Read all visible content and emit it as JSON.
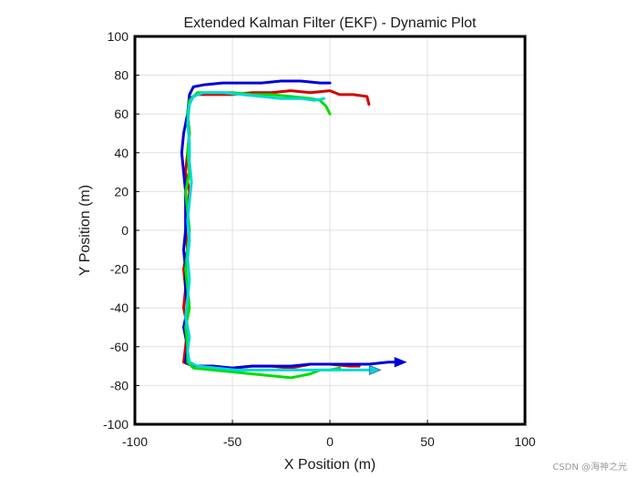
{
  "chart_data": {
    "type": "line",
    "title": "Extended Kalman Filter (EKF) - Dynamic Plot",
    "xlabel": "X Position (m)",
    "ylabel": "Y Position (m)",
    "xlim": [
      -100,
      100
    ],
    "ylim": [
      -100,
      100
    ],
    "xticks": [
      -100,
      -50,
      0,
      50,
      100
    ],
    "yticks": [
      -100,
      -80,
      -60,
      -40,
      -20,
      0,
      20,
      40,
      60,
      80,
      100
    ],
    "grid": true,
    "legend": "none",
    "series": [
      {
        "color": "#d40000",
        "end_marker": "none",
        "points": [
          [
            20,
            65
          ],
          [
            19,
            69
          ],
          [
            12,
            70
          ],
          [
            5,
            70
          ],
          [
            0,
            72
          ],
          [
            -10,
            71
          ],
          [
            -20,
            72
          ],
          [
            -30,
            71
          ],
          [
            -40,
            71
          ],
          [
            -50,
            70
          ],
          [
            -60,
            70
          ],
          [
            -68,
            70
          ],
          [
            -72,
            68
          ],
          [
            -73,
            60
          ],
          [
            -72,
            50
          ],
          [
            -73,
            40
          ],
          [
            -74,
            30
          ],
          [
            -72,
            20
          ],
          [
            -73,
            10
          ],
          [
            -74,
            0
          ],
          [
            -73,
            -10
          ],
          [
            -75,
            -20
          ],
          [
            -74,
            -30
          ],
          [
            -75,
            -40
          ],
          [
            -73,
            -50
          ],
          [
            -74,
            -60
          ],
          [
            -75,
            -68
          ],
          [
            -70,
            -70
          ],
          [
            -60,
            -70
          ],
          [
            -50,
            -71
          ],
          [
            -40,
            -70
          ],
          [
            -30,
            -70
          ],
          [
            -20,
            -71
          ],
          [
            -10,
            -69
          ],
          [
            0,
            -69
          ],
          [
            10,
            -70
          ],
          [
            15,
            -70
          ]
        ]
      },
      {
        "color": "#0000d8",
        "end_marker": "arrow",
        "points": [
          [
            0,
            76
          ],
          [
            -5,
            76
          ],
          [
            -15,
            77
          ],
          [
            -25,
            77
          ],
          [
            -35,
            76
          ],
          [
            -45,
            76
          ],
          [
            -55,
            76
          ],
          [
            -65,
            75
          ],
          [
            -70,
            74
          ],
          [
            -72,
            70
          ],
          [
            -73,
            60
          ],
          [
            -75,
            50
          ],
          [
            -76,
            40
          ],
          [
            -75,
            30
          ],
          [
            -74,
            20
          ],
          [
            -74,
            10
          ],
          [
            -74,
            0
          ],
          [
            -75,
            -10
          ],
          [
            -74,
            -20
          ],
          [
            -74,
            -30
          ],
          [
            -73,
            -40
          ],
          [
            -75,
            -50
          ],
          [
            -73,
            -60
          ],
          [
            -74,
            -68
          ],
          [
            -70,
            -70
          ],
          [
            -60,
            -70
          ],
          [
            -50,
            -71
          ],
          [
            -40,
            -70
          ],
          [
            -30,
            -70
          ],
          [
            -20,
            -70
          ],
          [
            -10,
            -69
          ],
          [
            0,
            -69
          ],
          [
            10,
            -69
          ],
          [
            20,
            -69
          ],
          [
            30,
            -68
          ],
          [
            37,
            -68
          ]
        ]
      },
      {
        "color": "#00dd00",
        "end_marker": "none",
        "points": [
          [
            0,
            60
          ],
          [
            -2,
            64
          ],
          [
            -5,
            67
          ],
          [
            -10,
            68
          ],
          [
            -20,
            69
          ],
          [
            -30,
            70
          ],
          [
            -40,
            70
          ],
          [
            -50,
            71
          ],
          [
            -60,
            71
          ],
          [
            -68,
            71
          ],
          [
            -72,
            67
          ],
          [
            -73,
            60
          ],
          [
            -72,
            50
          ],
          [
            -73,
            40
          ],
          [
            -72,
            30
          ],
          [
            -74,
            20
          ],
          [
            -73,
            10
          ],
          [
            -72,
            0
          ],
          [
            -73,
            -10
          ],
          [
            -74,
            -20
          ],
          [
            -73,
            -30
          ],
          [
            -72,
            -40
          ],
          [
            -74,
            -50
          ],
          [
            -73,
            -60
          ],
          [
            -73,
            -68
          ],
          [
            -70,
            -71
          ],
          [
            -60,
            -72
          ],
          [
            -50,
            -73
          ],
          [
            -40,
            -74
          ],
          [
            -30,
            -75
          ],
          [
            -20,
            -76
          ],
          [
            -15,
            -75
          ],
          [
            -10,
            -74
          ],
          [
            -5,
            -72
          ],
          [
            0,
            -72
          ],
          [
            5,
            -71
          ]
        ]
      },
      {
        "color": "#00d8d8",
        "end_marker": "arrow",
        "points": [
          [
            -3,
            68
          ],
          [
            -8,
            67
          ],
          [
            -15,
            68
          ],
          [
            -25,
            68
          ],
          [
            -35,
            69
          ],
          [
            -45,
            70
          ],
          [
            -55,
            71
          ],
          [
            -65,
            71
          ],
          [
            -70,
            69
          ],
          [
            -72,
            65
          ],
          [
            -73,
            55
          ],
          [
            -72,
            45
          ],
          [
            -72,
            35
          ],
          [
            -71,
            25
          ],
          [
            -72,
            15
          ],
          [
            -73,
            5
          ],
          [
            -72,
            -5
          ],
          [
            -73,
            -15
          ],
          [
            -72,
            -25
          ],
          [
            -73,
            -35
          ],
          [
            -74,
            -45
          ],
          [
            -72,
            -55
          ],
          [
            -73,
            -62
          ],
          [
            -72,
            -68
          ],
          [
            -68,
            -70
          ],
          [
            -58,
            -71
          ],
          [
            -48,
            -72
          ],
          [
            -38,
            -72
          ],
          [
            -28,
            -72
          ],
          [
            -18,
            -72
          ],
          [
            -8,
            -72
          ],
          [
            0,
            -72
          ],
          [
            10,
            -72
          ],
          [
            18,
            -72
          ],
          [
            24,
            -72
          ]
        ]
      }
    ]
  },
  "watermark": "CSDN @海神之光"
}
